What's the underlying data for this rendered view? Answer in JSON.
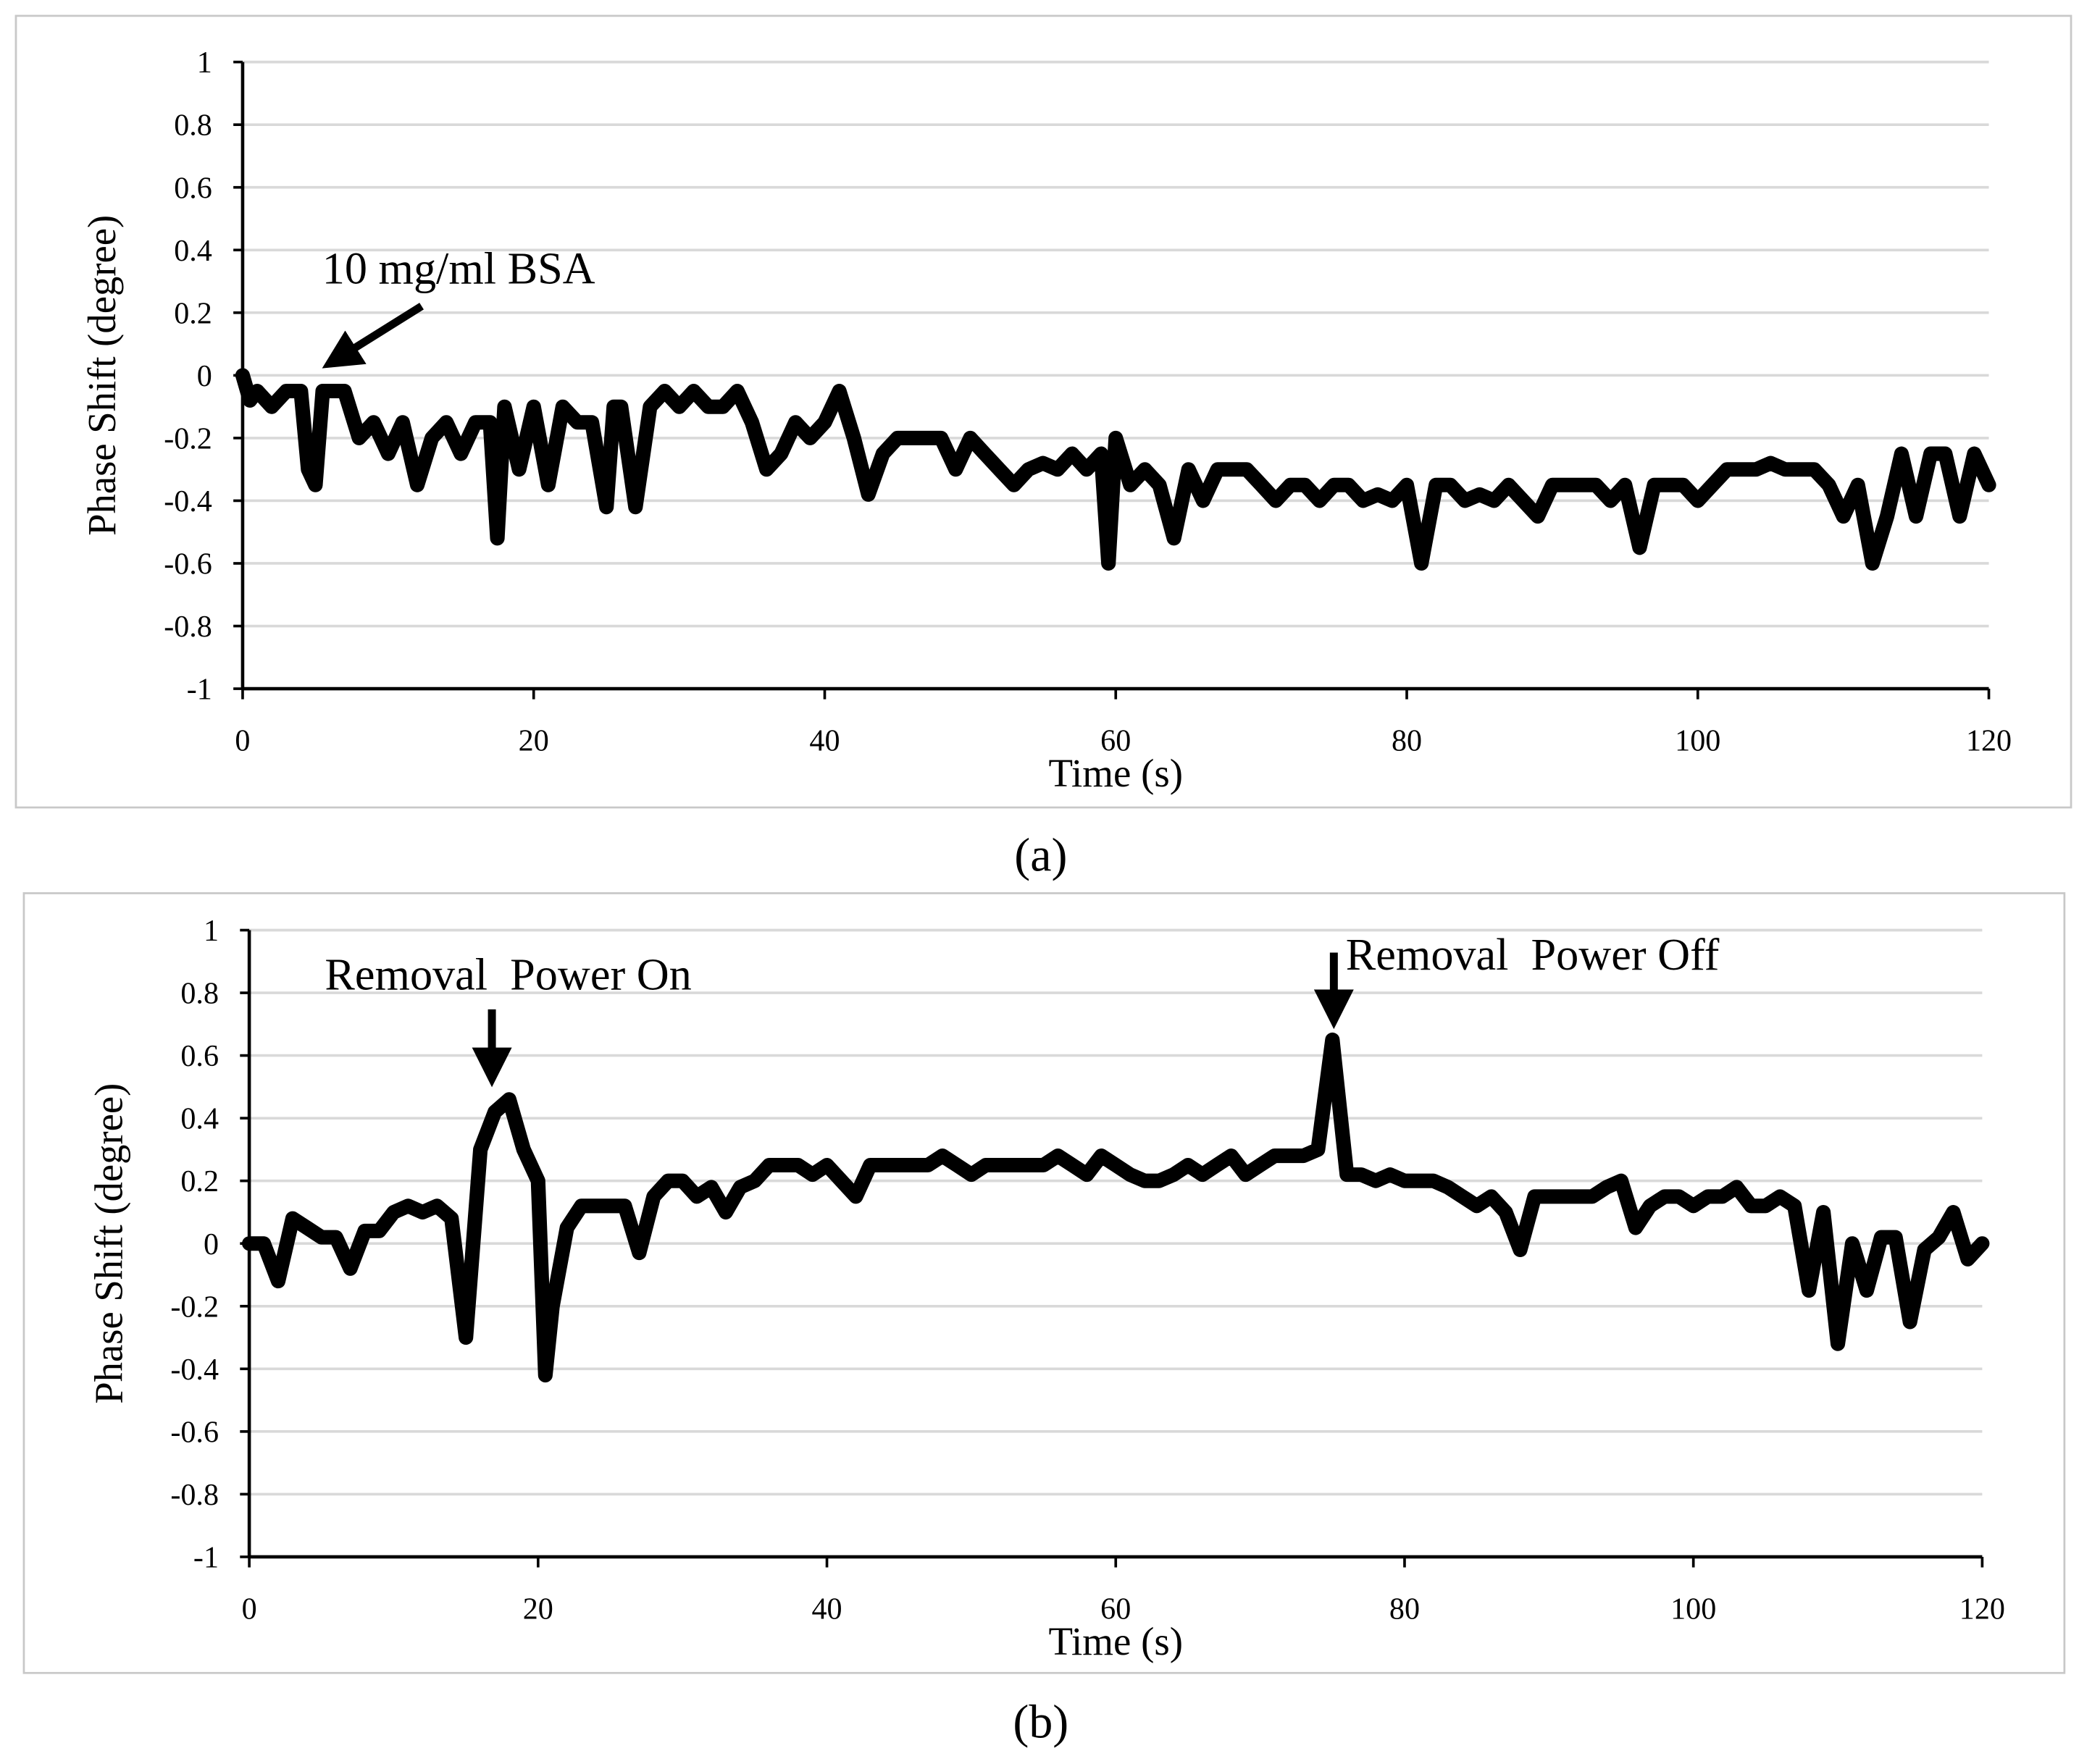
{
  "chart_data": [
    {
      "type": "line",
      "caption": "(a)",
      "x_label": "Time (s)",
      "y_label": "Phase Shift (degree)",
      "color": "#000000",
      "grid": true,
      "annotations": [
        "10 mg/ml BSA"
      ],
      "xlim": [
        0,
        120
      ],
      "xticks": [
        0,
        20,
        40,
        60,
        80,
        100,
        120
      ],
      "ylim": [
        -1,
        1
      ],
      "yticks": [
        -1,
        -0.8,
        -0.6,
        -0.4,
        -0.2,
        0,
        0.2,
        0.4,
        0.6,
        0.8,
        1
      ],
      "x": [
        0,
        0.5,
        1,
        2,
        3,
        4,
        4.5,
        5,
        5.5,
        7,
        8,
        9,
        10,
        11,
        12,
        13,
        14,
        15,
        16,
        17,
        17.5,
        18,
        19,
        20,
        21,
        22,
        23,
        24,
        25,
        25.5,
        26,
        27,
        28,
        29,
        30,
        31,
        32,
        33,
        34,
        35,
        36,
        37,
        38,
        39,
        40,
        41,
        42,
        43,
        44,
        45,
        46,
        47,
        48,
        49,
        50,
        51,
        52,
        53,
        54,
        55,
        56,
        57,
        58,
        59,
        59.5,
        60,
        61,
        62,
        63,
        64,
        65,
        66,
        67,
        68,
        69,
        70,
        71,
        72,
        73,
        74,
        75,
        76,
        77,
        78,
        79,
        80,
        81,
        82,
        83,
        84,
        85,
        86,
        87,
        88,
        89,
        90,
        91,
        92,
        93,
        94,
        95,
        96,
        97,
        98,
        99,
        100,
        101,
        102,
        103,
        104,
        105,
        106,
        107,
        108,
        109,
        110,
        111,
        112,
        113,
        114,
        115,
        116,
        117,
        118,
        119,
        120
      ],
      "values": [
        0,
        -0.08,
        -0.05,
        -0.1,
        -0.05,
        -0.05,
        -0.3,
        -0.35,
        -0.05,
        -0.05,
        -0.2,
        -0.15,
        -0.25,
        -0.15,
        -0.35,
        -0.2,
        -0.15,
        -0.25,
        -0.15,
        -0.15,
        -0.52,
        -0.1,
        -0.3,
        -0.1,
        -0.35,
        -0.1,
        -0.15,
        -0.15,
        -0.42,
        -0.1,
        -0.1,
        -0.42,
        -0.1,
        -0.05,
        -0.1,
        -0.05,
        -0.1,
        -0.1,
        -0.05,
        -0.15,
        -0.3,
        -0.25,
        -0.15,
        -0.2,
        -0.15,
        -0.05,
        -0.2,
        -0.38,
        -0.25,
        -0.2,
        -0.2,
        -0.2,
        -0.2,
        -0.3,
        -0.2,
        -0.25,
        -0.3,
        -0.35,
        -0.3,
        -0.28,
        -0.3,
        -0.25,
        -0.3,
        -0.25,
        -0.6,
        -0.2,
        -0.35,
        -0.3,
        -0.35,
        -0.52,
        -0.3,
        -0.4,
        -0.3,
        -0.3,
        -0.3,
        -0.35,
        -0.4,
        -0.35,
        -0.35,
        -0.4,
        -0.35,
        -0.35,
        -0.4,
        -0.38,
        -0.4,
        -0.35,
        -0.6,
        -0.35,
        -0.35,
        -0.4,
        -0.38,
        -0.4,
        -0.35,
        -0.4,
        -0.45,
        -0.35,
        -0.35,
        -0.35,
        -0.35,
        -0.4,
        -0.35,
        -0.55,
        -0.35,
        -0.35,
        -0.35,
        -0.4,
        -0.35,
        -0.3,
        -0.3,
        -0.3,
        -0.28,
        -0.3,
        -0.3,
        -0.3,
        -0.35,
        -0.45,
        -0.35,
        -0.6,
        -0.45,
        -0.25,
        -0.45,
        -0.25,
        -0.25,
        -0.45,
        -0.25,
        -0.35
      ]
    },
    {
      "type": "line",
      "caption": "(b)",
      "x_label": "Time (s)",
      "y_label": "Phase Shift (degree)",
      "color": "#000000",
      "grid": true,
      "annotations": [
        "Removal  Power On",
        "Removal  Power Off"
      ],
      "xlim": [
        0,
        120
      ],
      "xticks": [
        0,
        20,
        40,
        60,
        80,
        100,
        120
      ],
      "ylim": [
        -1,
        1
      ],
      "yticks": [
        -1,
        -0.8,
        -0.6,
        -0.4,
        -0.2,
        0,
        0.2,
        0.4,
        0.6,
        0.8,
        1
      ],
      "x": [
        0,
        1,
        2,
        3,
        4,
        5,
        6,
        7,
        8,
        9,
        10,
        11,
        12,
        13,
        14,
        15,
        16,
        17,
        18,
        19,
        20,
        20.5,
        21,
        22,
        23,
        24,
        25,
        26,
        27,
        28,
        29,
        30,
        31,
        32,
        33,
        34,
        35,
        36,
        37,
        38,
        39,
        40,
        41,
        42,
        43,
        44,
        45,
        46,
        47,
        48,
        49,
        50,
        51,
        52,
        53,
        54,
        55,
        56,
        57,
        58,
        59,
        60,
        61,
        62,
        63,
        64,
        65,
        66,
        67,
        68,
        69,
        70,
        71,
        72,
        73,
        74,
        75,
        76,
        77,
        78,
        79,
        80,
        81,
        82,
        83,
        84,
        85,
        86,
        87,
        88,
        89,
        90,
        91,
        92,
        93,
        94,
        95,
        96,
        97,
        98,
        99,
        100,
        101,
        102,
        103,
        104,
        105,
        106,
        107,
        108,
        109,
        110,
        111,
        112,
        113,
        114,
        115,
        116,
        117,
        118,
        119,
        120
      ],
      "values": [
        0,
        0,
        -0.12,
        0.08,
        0.05,
        0.02,
        0.02,
        -0.08,
        0.04,
        0.04,
        0.1,
        0.12,
        0.1,
        0.12,
        0.08,
        -0.3,
        0.3,
        0.42,
        0.46,
        0.3,
        0.2,
        -0.42,
        -0.2,
        0.05,
        0.12,
        0.12,
        0.12,
        0.12,
        -0.03,
        0.15,
        0.2,
        0.2,
        0.15,
        0.18,
        0.1,
        0.18,
        0.2,
        0.25,
        0.25,
        0.25,
        0.22,
        0.25,
        0.2,
        0.15,
        0.25,
        0.25,
        0.25,
        0.25,
        0.25,
        0.28,
        0.25,
        0.22,
        0.25,
        0.25,
        0.25,
        0.25,
        0.25,
        0.28,
        0.25,
        0.22,
        0.28,
        0.25,
        0.22,
        0.2,
        0.2,
        0.22,
        0.25,
        0.22,
        0.25,
        0.28,
        0.22,
        0.25,
        0.28,
        0.28,
        0.28,
        0.3,
        0.65,
        0.22,
        0.22,
        0.2,
        0.22,
        0.2,
        0.2,
        0.2,
        0.18,
        0.15,
        0.12,
        0.15,
        0.1,
        -0.02,
        0.15,
        0.15,
        0.15,
        0.15,
        0.15,
        0.18,
        0.2,
        0.05,
        0.12,
        0.15,
        0.15,
        0.12,
        0.15,
        0.15,
        0.18,
        0.12,
        0.12,
        0.15,
        0.12,
        -0.15,
        0.1,
        -0.32,
        0,
        -0.15,
        0.02,
        0.02,
        -0.25,
        -0.02,
        0.02,
        0.1,
        -0.05,
        0
      ]
    }
  ]
}
